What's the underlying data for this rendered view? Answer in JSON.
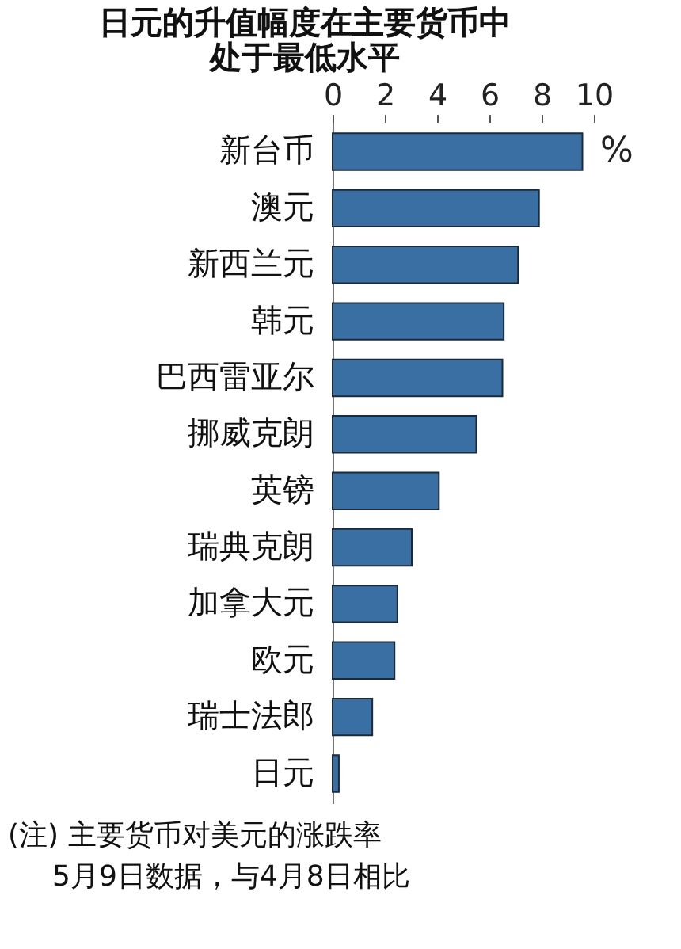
{
  "chart_data": {
    "type": "bar",
    "orientation": "horizontal",
    "title": [
      "日元的升值幅度在主要货币中",
      "处于最低水平"
    ],
    "xlabel": "%",
    "categories": [
      "新台币",
      "澳元",
      "新西兰元",
      "韩元",
      "巴西雷亚尔",
      "挪威克朗",
      "英镑",
      "瑞典克朗",
      "加拿大元",
      "欧元",
      "瑞士法郎",
      "日元"
    ],
    "values": [
      9.56,
      7.9,
      7.1,
      6.55,
      6.5,
      5.5,
      4.07,
      3.03,
      2.48,
      2.37,
      1.52,
      0.24
    ],
    "color": "#3a6fa3",
    "xlim": [
      0,
      10
    ],
    "xticks": [
      0,
      2,
      4,
      6,
      8,
      10
    ],
    "grid": false,
    "annotations": [
      "(注) 主要货币对美元的涨跌率",
      "5月9日数据，与4月8日相比"
    ]
  }
}
